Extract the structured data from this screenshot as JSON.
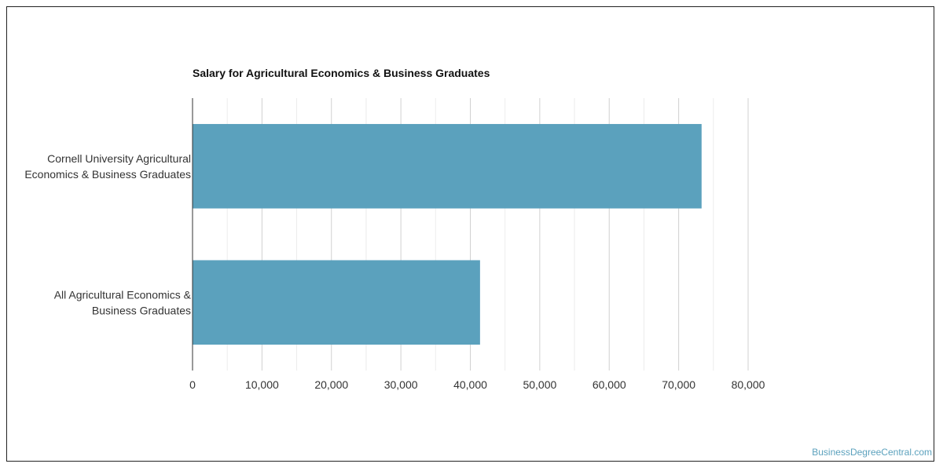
{
  "watermark": "BusinessDegreeCentral.com",
  "chart_data": {
    "type": "bar",
    "orientation": "horizontal",
    "title": "Salary for Agricultural Economics & Business Graduates",
    "categories": [
      [
        "Cornell University Agricultural",
        "Economics & Business Graduates"
      ],
      [
        "All Agricultural Economics &",
        "Business Graduates"
      ]
    ],
    "values": [
      73300,
      41400
    ],
    "xlim": [
      0,
      80000
    ],
    "x_ticks": [
      0,
      10000,
      20000,
      30000,
      40000,
      50000,
      60000,
      70000,
      80000
    ],
    "x_tick_labels": [
      "0",
      "10,000",
      "20,000",
      "30,000",
      "40,000",
      "50,000",
      "60,000",
      "70,000",
      "80,000"
    ],
    "xlabel": "",
    "ylabel": "",
    "grid": true,
    "legend": "none",
    "bar_color": "#5ba1bd"
  }
}
